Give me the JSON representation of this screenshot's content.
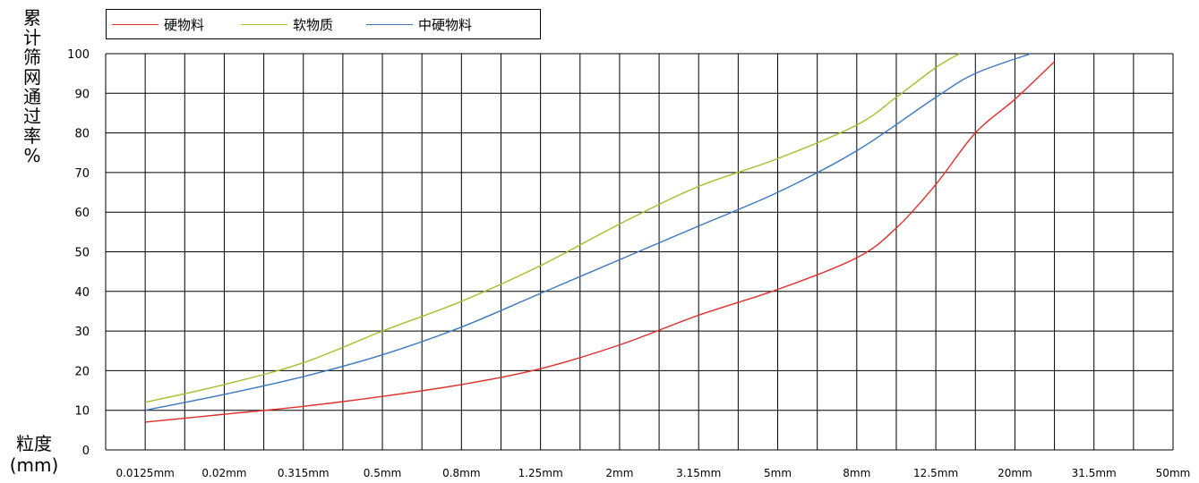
{
  "chart_data": {
    "type": "line",
    "ylabel": "累计筛网通过率%",
    "xlabel": "粒度(mm)",
    "ylim": [
      0,
      100
    ],
    "yticks": [
      0,
      10,
      20,
      30,
      40,
      50,
      60,
      70,
      80,
      90,
      100
    ],
    "x_labels": [
      "0.0125mm",
      "0.02mm",
      "0.315mm",
      "0.5mm",
      "0.8mm",
      "1.25mm",
      "2mm",
      "3.15mm",
      "5mm",
      "8mm",
      "12.5mm",
      "20mm",
      "31.5mm",
      "50mm"
    ],
    "grid": true,
    "legend_position": "top-left",
    "series": [
      {
        "name": "硬物料",
        "color": "#e0302a",
        "points": [
          [
            0.0,
            7
          ],
          [
            1.0,
            9
          ],
          [
            2.0,
            11
          ],
          [
            3.0,
            13.5
          ],
          [
            4.0,
            16.5
          ],
          [
            5.0,
            20.5
          ],
          [
            6.0,
            26.5
          ],
          [
            7.0,
            34
          ],
          [
            8.0,
            40.5
          ],
          [
            9.0,
            48.5
          ],
          [
            9.5,
            56
          ],
          [
            10.0,
            67
          ],
          [
            10.5,
            80
          ],
          [
            11.0,
            88.5
          ],
          [
            11.5,
            98
          ]
        ]
      },
      {
        "name": "软物质",
        "color": "#a3bf2c",
        "points": [
          [
            0.0,
            12
          ],
          [
            1.0,
            16.5
          ],
          [
            2.0,
            22
          ],
          [
            3.0,
            30
          ],
          [
            4.0,
            37.5
          ],
          [
            5.0,
            46.5
          ],
          [
            6.0,
            57
          ],
          [
            7.0,
            66.5
          ],
          [
            8.0,
            73.5
          ],
          [
            9.0,
            82
          ],
          [
            9.5,
            89
          ],
          [
            10.0,
            96.5
          ],
          [
            10.3,
            100
          ]
        ]
      },
      {
        "name": "中硬物料",
        "color": "#3a78c0",
        "points": [
          [
            0.0,
            10
          ],
          [
            1.0,
            14
          ],
          [
            2.0,
            18.5
          ],
          [
            3.0,
            24
          ],
          [
            4.0,
            31
          ],
          [
            5.0,
            39.5
          ],
          [
            6.0,
            48
          ],
          [
            7.0,
            56.5
          ],
          [
            8.0,
            65
          ],
          [
            9.0,
            75.5
          ],
          [
            10.0,
            89
          ],
          [
            10.5,
            95
          ],
          [
            11.2,
            100
          ]
        ]
      }
    ]
  }
}
